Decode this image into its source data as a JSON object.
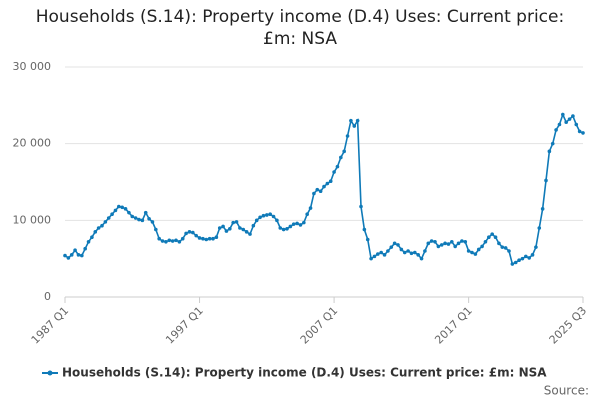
{
  "chart_data": {
    "type": "line",
    "title": "Households (S.14): Property income (D.4) Uses: Current price: £m: NSA",
    "categories": [
      "1987 Q1",
      null,
      null,
      null,
      null,
      null,
      null,
      null,
      null,
      null,
      null,
      null,
      null,
      null,
      null,
      null,
      null,
      null,
      null,
      null,
      null,
      null,
      null,
      null,
      null,
      null,
      null,
      null,
      null,
      null,
      null,
      null,
      null,
      null,
      null,
      null,
      null,
      null,
      null,
      null,
      "1997 Q1",
      null,
      null,
      null,
      null,
      null,
      null,
      null,
      null,
      null,
      null,
      null,
      null,
      null,
      null,
      null,
      null,
      null,
      null,
      null,
      null,
      null,
      null,
      null,
      null,
      null,
      null,
      null,
      null,
      null,
      null,
      null,
      null,
      null,
      null,
      null,
      null,
      null,
      null,
      null,
      "2007 Q1",
      null,
      null,
      null,
      null,
      null,
      null,
      null,
      null,
      null,
      null,
      null,
      null,
      null,
      null,
      null,
      null,
      null,
      null,
      null,
      null,
      null,
      null,
      null,
      null,
      null,
      null,
      null,
      null,
      null,
      null,
      null,
      null,
      null,
      null,
      null,
      null,
      null,
      null,
      null,
      "2017 Q1",
      null,
      null,
      null,
      null,
      null,
      null,
      null,
      null,
      null,
      null,
      null,
      null,
      null,
      null,
      null,
      null,
      null,
      null,
      null,
      null,
      null,
      null,
      null,
      null,
      null,
      null,
      null,
      null,
      null,
      null,
      null,
      null,
      null,
      "2025 Q3"
    ],
    "series": [
      {
        "name": "Households (S.14): Property income (D.4) Uses: Current price: £m: NSA",
        "color": "#0f7ab8",
        "values": [
          5400,
          5100,
          5500,
          6100,
          5500,
          5400,
          6300,
          7200,
          7800,
          8500,
          9000,
          9300,
          9800,
          10300,
          10800,
          11300,
          11800,
          11700,
          11500,
          11000,
          10500,
          10300,
          10100,
          10000,
          11000,
          10200,
          9800,
          8800,
          7600,
          7300,
          7200,
          7400,
          7300,
          7400,
          7200,
          7600,
          8300,
          8500,
          8400,
          8000,
          7700,
          7600,
          7500,
          7600,
          7600,
          7800,
          9000,
          9200,
          8600,
          8900,
          9700,
          9800,
          9000,
          8800,
          8500,
          8200,
          9300,
          10000,
          10400,
          10600,
          10700,
          10800,
          10500,
          10000,
          9000,
          8800,
          8900,
          9200,
          9500,
          9600,
          9400,
          9700,
          10800,
          11600,
          13500,
          14000,
          13800,
          14400,
          14800,
          15100,
          16300,
          17000,
          18200,
          19000,
          21000,
          23000,
          22300,
          23000,
          11800,
          8800,
          7500,
          5000,
          5300,
          5600,
          5800,
          5500,
          6000,
          6500,
          7000,
          6800,
          6200,
          5800,
          6000,
          5700,
          5800,
          5500,
          5000,
          6000,
          7000,
          7300,
          7200,
          6600,
          6800,
          7000,
          6900,
          7200,
          6600,
          7000,
          7300,
          7200,
          6000,
          5800,
          5600,
          6200,
          6600,
          7200,
          7800,
          8200,
          7800,
          7000,
          6500,
          6400,
          6000,
          4300,
          4500,
          4800,
          5000,
          5300,
          5100,
          5500,
          6500,
          9000,
          11500,
          15200,
          19000,
          20000,
          21800,
          22500,
          23800,
          22800,
          23200,
          23600,
          22500,
          21600,
          21400
        ]
      }
    ],
    "ylim": [
      0,
      30000
    ],
    "yticks": [
      0,
      {
        "value": 10000,
        "label": "10 000"
      },
      {
        "value": 20000,
        "label": "20 000"
      },
      {
        "value": 30000,
        "label": "30 000"
      }
    ],
    "grid": true,
    "source": "Source:"
  }
}
